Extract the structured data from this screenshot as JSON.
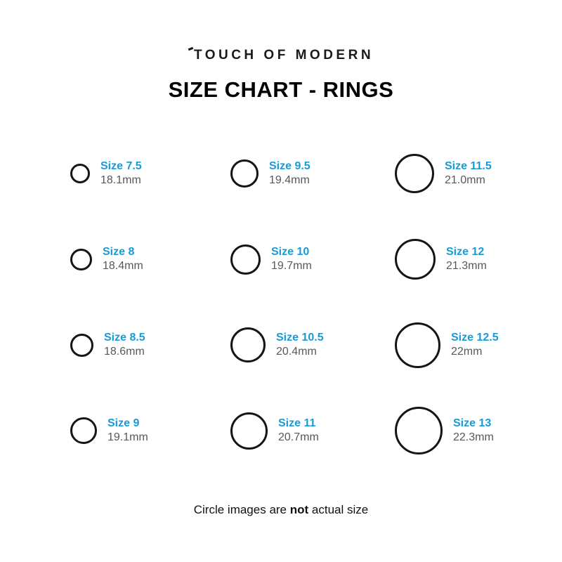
{
  "header": {
    "brand": "TOUCH OF MODERN",
    "title": "SIZE CHART - RINGS"
  },
  "chart": {
    "columns": [
      [
        {
          "size_label": "Size 7.5",
          "mm_label": "18.1mm",
          "diameter_mm": 18.1
        },
        {
          "size_label": "Size 8",
          "mm_label": "18.4mm",
          "diameter_mm": 18.4
        },
        {
          "size_label": "Size 8.5",
          "mm_label": "18.6mm",
          "diameter_mm": 18.6
        },
        {
          "size_label": "Size 9",
          "mm_label": "19.1mm",
          "diameter_mm": 19.1
        }
      ],
      [
        {
          "size_label": "Size 9.5",
          "mm_label": "19.4mm",
          "diameter_mm": 19.4
        },
        {
          "size_label": "Size 10",
          "mm_label": "19.7mm",
          "diameter_mm": 19.7
        },
        {
          "size_label": "Size 10.5",
          "mm_label": "20.4mm",
          "diameter_mm": 20.4
        },
        {
          "size_label": "Size 11",
          "mm_label": "20.7mm",
          "diameter_mm": 20.7
        }
      ],
      [
        {
          "size_label": "Size 11.5",
          "mm_label": "21.0mm",
          "diameter_mm": 21.0
        },
        {
          "size_label": "Size 12",
          "mm_label": "21.3mm",
          "diameter_mm": 21.3
        },
        {
          "size_label": "Size 12.5",
          "mm_label": "22mm",
          "diameter_mm": 22.0
        },
        {
          "size_label": "Size 13",
          "mm_label": "22.3mm",
          "diameter_mm": 22.3
        }
      ]
    ]
  },
  "footer": {
    "prefix": "Circle images are ",
    "bold": "not",
    "suffix": " actual size"
  },
  "colors": {
    "size_label_blue": "#189AD6",
    "diameter_gray": "#58585A",
    "ring_stroke": "#151515"
  }
}
